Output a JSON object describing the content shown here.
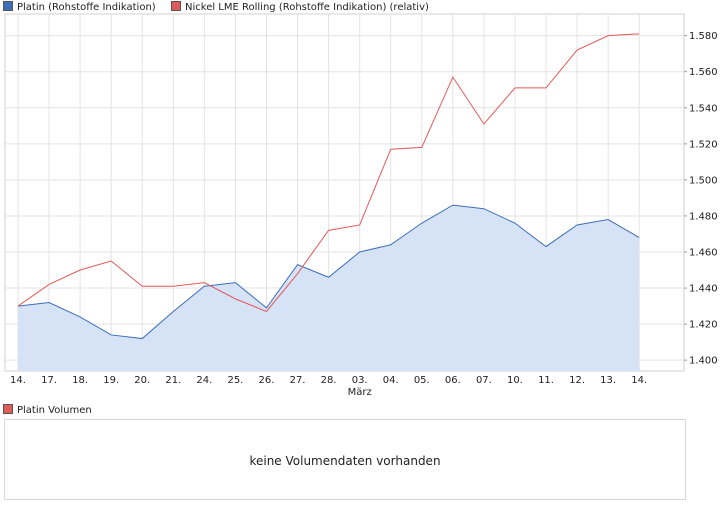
{
  "legend": {
    "series1": {
      "label": "Platin (Rohstoffe Indikation)",
      "color": "#3d6eb8"
    },
    "series2": {
      "label": "Nickel LME Rolling (Rohstoffe Indikation) (relativ)",
      "color": "#e15a5a"
    }
  },
  "volume": {
    "legend_label": "Platin Volumen",
    "legend_color": "#e15a5a",
    "message": "keine Volumendaten vorhanden"
  },
  "chart_data": {
    "type": "line",
    "categories": [
      "14.",
      "17.",
      "18.",
      "19.",
      "20.",
      "21.",
      "24.",
      "25.",
      "26.",
      "27.",
      "28.",
      "03.",
      "04.",
      "05.",
      "06.",
      "07.",
      "10.",
      "11.",
      "12.",
      "13.",
      "14."
    ],
    "month_label": "März",
    "month_label_index": 11,
    "y_ticks": [
      1400,
      1420,
      1440,
      1460,
      1480,
      1500,
      1520,
      1540,
      1560,
      1580
    ],
    "y_tick_labels": [
      "1.400",
      "1.420",
      "1.440",
      "1.460",
      "1.480",
      "1.500",
      "1.520",
      "1.540",
      "1.560",
      "1.580"
    ],
    "ylim": [
      1394,
      1592
    ],
    "grid": true,
    "legend_position": "top-left",
    "series": [
      {
        "name": "Platin (Rohstoffe Indikation)",
        "style": "area",
        "line_color": "#3d6eb8",
        "fill_color": "#d6e3f7",
        "values": [
          1430,
          1432,
          1424,
          1414,
          1412,
          1427,
          1441,
          1443,
          1429,
          1453,
          1446,
          1460,
          1464,
          1476,
          1486,
          1484,
          1476,
          1463,
          1475,
          1478,
          1468
        ]
      },
      {
        "name": "Nickel LME Rolling (Rohstoffe Indikation) (relativ)",
        "style": "line",
        "line_color": "#e15a5a",
        "values": [
          1430,
          1442,
          1450,
          1455,
          1441,
          1441,
          1443,
          1434,
          1427,
          1448,
          1472,
          1475,
          1517,
          1518,
          1557,
          1531,
          1551,
          1551,
          1572,
          1580,
          1581
        ]
      }
    ]
  }
}
